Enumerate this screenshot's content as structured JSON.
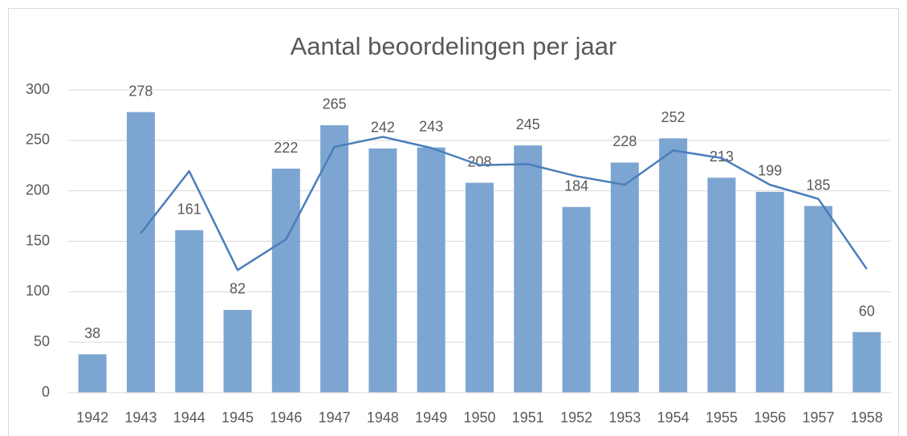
{
  "chart_data": {
    "type": "bar",
    "title": "Aantal beoordelingen per jaar",
    "categories": [
      "1942",
      "1943",
      "1944",
      "1945",
      "1946",
      "1947",
      "1948",
      "1949",
      "1950",
      "1951",
      "1952",
      "1953",
      "1954",
      "1955",
      "1956",
      "1957",
      "1958"
    ],
    "values": [
      38,
      278,
      161,
      82,
      222,
      265,
      242,
      243,
      208,
      245,
      184,
      228,
      252,
      213,
      199,
      185,
      60
    ],
    "color": "#7da5d1",
    "trendline": {
      "color": "#4a7ebb",
      "values": [
        null,
        158,
        219.5,
        121.5,
        152,
        243.5,
        253.5,
        242.5,
        225.5,
        226.5,
        214.5,
        206,
        240,
        232.5,
        206,
        192,
        122.5
      ]
    },
    "ylim": [
      0,
      300
    ],
    "yticks": [
      0,
      50,
      100,
      150,
      200,
      250,
      300
    ],
    "grid": true
  }
}
